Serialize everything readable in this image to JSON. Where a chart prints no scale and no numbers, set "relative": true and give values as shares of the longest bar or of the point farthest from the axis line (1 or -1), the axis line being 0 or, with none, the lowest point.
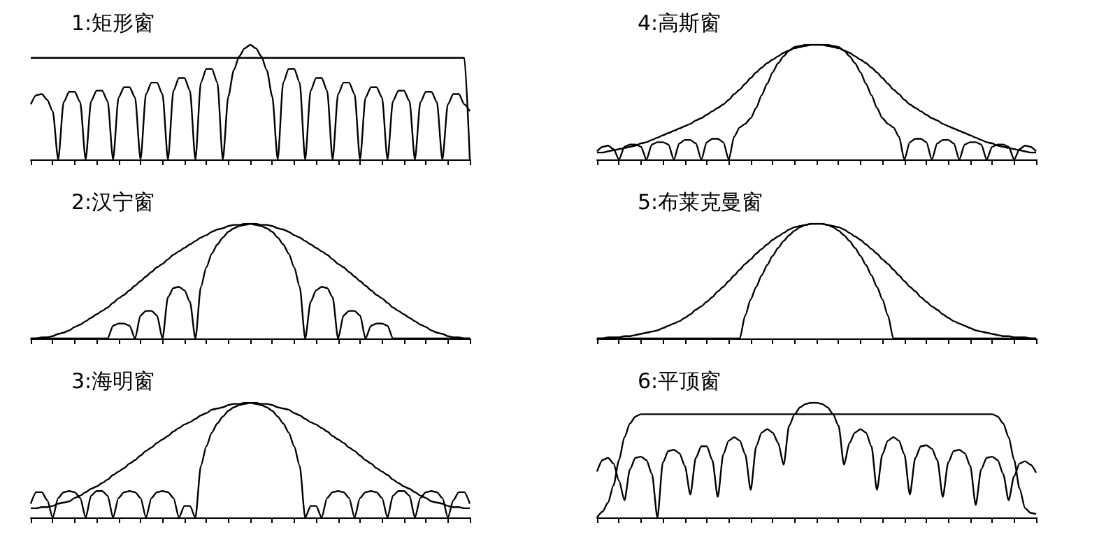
{
  "chart_data": [
    {
      "type": "line",
      "title": "1:矩形窗",
      "relative": true,
      "categories": [
        null,
        null,
        null,
        null,
        null,
        null,
        null,
        null,
        null,
        null,
        null,
        null,
        null,
        null,
        null,
        null,
        null,
        null,
        null,
        null,
        null,
        null,
        null,
        null,
        null,
        null,
        null,
        null,
        null,
        null,
        null,
        null,
        null,
        null,
        null,
        null,
        null,
        null,
        null,
        null,
        null,
        null,
        null,
        null,
        null,
        null,
        null,
        null,
        null,
        null,
        null,
        null,
        null,
        null,
        null,
        null,
        null,
        null,
        null,
        null,
        null,
        null,
        null,
        null,
        null,
        null,
        null,
        null,
        null,
        null,
        null,
        null,
        null,
        null,
        null,
        null,
        null,
        null,
        null,
        null,
        null
      ],
      "series": [
        {
          "color": "#000000",
          "values": [
            0.886,
            0.886,
            0.886,
            0.886,
            0.886,
            0.886,
            0.886,
            0.886,
            0.886,
            0.886,
            0.886,
            0.886,
            0.886,
            0.886,
            0.886,
            0.886,
            0.886,
            0.886,
            0.886,
            0.886,
            0.886,
            0.886,
            0.886,
            0.886,
            0.886,
            0.886,
            0.886,
            0.886,
            0.886,
            0.886,
            0.886,
            0.886,
            0.886,
            0.886,
            0.886,
            0.886,
            0.886,
            0.886,
            0.886,
            0.886,
            0.886,
            0.886,
            0.886,
            0.886,
            0.886,
            0.886,
            0.886,
            0.886,
            0.886,
            0.886,
            0.886,
            0.886,
            0.886,
            0.886,
            0.886,
            0.886,
            0.886,
            0.886,
            0.886,
            0.886,
            0.886,
            0.886,
            0.886,
            0.886,
            0.886,
            0.886,
            0.886,
            0.886,
            0.886,
            0.886,
            0.886,
            0.886,
            0.886,
            0.886,
            0.886,
            0.886,
            0.886,
            0.886,
            0.886,
            0.886,
            0
          ]
        },
        {
          "color": "#000000",
          "values": [
            0.48,
            0.56,
            0.57,
            0.52,
            0.42,
            0,
            0.5,
            0.59,
            0.59,
            0.5,
            0,
            0.51,
            0.6,
            0.6,
            0.51,
            0,
            0.54,
            0.63,
            0.63,
            0.54,
            0,
            0.57,
            0.67,
            0.67,
            0.57,
            0,
            0.6,
            0.71,
            0.71,
            0.6,
            0,
            0.67,
            0.79,
            0.79,
            0.67,
            0,
            0.55,
            0.78,
            0.9,
            0.97,
            1,
            0.97,
            0.9,
            0.78,
            0.55,
            0,
            0.67,
            0.79,
            0.79,
            0.67,
            0,
            0.6,
            0.71,
            0.71,
            0.6,
            0,
            0.57,
            0.67,
            0.67,
            0.57,
            0,
            0.54,
            0.63,
            0.63,
            0.54,
            0,
            0.51,
            0.6,
            0.6,
            0.51,
            0,
            0.5,
            0.59,
            0.59,
            0.5,
            0,
            0.48,
            0.57,
            0.57,
            0.48,
            0.42
          ]
        }
      ]
    },
    {
      "type": "line",
      "title": "2:汉宁窗",
      "relative": true,
      "categories": [
        null,
        null,
        null,
        null,
        null,
        null,
        null,
        null,
        null,
        null,
        null,
        null,
        null,
        null,
        null,
        null,
        null,
        null,
        null,
        null,
        null,
        null,
        null,
        null,
        null,
        null,
        null,
        null,
        null,
        null,
        null,
        null,
        null,
        null,
        null,
        null,
        null,
        null,
        null,
        null,
        null,
        null,
        null,
        null,
        null,
        null,
        null,
        null,
        null,
        null,
        null,
        null,
        null,
        null,
        null,
        null,
        null,
        null,
        null,
        null,
        null,
        null,
        null,
        null,
        null,
        null,
        null,
        null,
        null,
        null,
        null,
        null,
        null,
        null,
        null,
        null,
        null,
        null,
        null,
        null,
        null
      ],
      "series": [
        {
          "color": "#000000",
          "values": [
            0,
            0,
            0.01,
            0.01,
            0.02,
            0.04,
            0.05,
            0.07,
            0.1,
            0.12,
            0.15,
            0.18,
            0.21,
            0.24,
            0.27,
            0.31,
            0.35,
            0.38,
            0.42,
            0.46,
            0.5,
            0.54,
            0.58,
            0.62,
            0.65,
            0.69,
            0.73,
            0.76,
            0.79,
            0.82,
            0.85,
            0.88,
            0.9,
            0.93,
            0.95,
            0.96,
            0.98,
            0.99,
            0.99,
            1,
            1,
            1,
            0.99,
            0.99,
            0.98,
            0.96,
            0.95,
            0.93,
            0.9,
            0.88,
            0.85,
            0.82,
            0.79,
            0.76,
            0.73,
            0.69,
            0.65,
            0.62,
            0.58,
            0.54,
            0.5,
            0.46,
            0.42,
            0.38,
            0.35,
            0.31,
            0.27,
            0.24,
            0.21,
            0.18,
            0.15,
            0.12,
            0.1,
            0.07,
            0.05,
            0.04,
            0.02,
            0.01,
            0.01,
            0,
            0
          ]
        },
        {
          "color": "#000000",
          "values": [
            0,
            0,
            0,
            0,
            0,
            0,
            0,
            0,
            0,
            0,
            0,
            0,
            0,
            0,
            0,
            0.11,
            0.13,
            0.13,
            0.11,
            0,
            0.2,
            0.24,
            0.24,
            0.2,
            0,
            0.36,
            0.44,
            0.45,
            0.42,
            0.32,
            0,
            0.45,
            0.62,
            0.74,
            0.82,
            0.88,
            0.93,
            0.96,
            0.98,
            0.99,
            1,
            0.99,
            0.98,
            0.96,
            0.93,
            0.88,
            0.82,
            0.74,
            0.62,
            0.45,
            0,
            0.32,
            0.42,
            0.45,
            0.44,
            0.36,
            0,
            0.2,
            0.24,
            0.24,
            0.2,
            0,
            0.11,
            0.13,
            0.13,
            0.11,
            0,
            0,
            0,
            0,
            0,
            0,
            0,
            0,
            0,
            0,
            0,
            0,
            0,
            0,
            0
          ]
        }
      ]
    },
    {
      "type": "line",
      "title": "3:海明窗",
      "relative": true,
      "categories": [
        null,
        null,
        null,
        null,
        null,
        null,
        null,
        null,
        null,
        null,
        null,
        null,
        null,
        null,
        null,
        null,
        null,
        null,
        null,
        null,
        null,
        null,
        null,
        null,
        null,
        null,
        null,
        null,
        null,
        null,
        null,
        null,
        null,
        null,
        null,
        null,
        null,
        null,
        null,
        null,
        null,
        null,
        null,
        null,
        null,
        null,
        null,
        null,
        null,
        null,
        null,
        null,
        null,
        null,
        null,
        null,
        null,
        null,
        null,
        null,
        null,
        null,
        null,
        null,
        null,
        null,
        null,
        null,
        null,
        null,
        null,
        null,
        null,
        null,
        null,
        null,
        null,
        null,
        null,
        null,
        null
      ],
      "series": [
        {
          "color": "#000000",
          "values": [
            0.08,
            0.08,
            0.09,
            0.09,
            0.1,
            0.12,
            0.13,
            0.14,
            0.17,
            0.19,
            0.22,
            0.25,
            0.27,
            0.3,
            0.33,
            0.37,
            0.4,
            0.43,
            0.47,
            0.5,
            0.54,
            0.58,
            0.61,
            0.65,
            0.68,
            0.71,
            0.75,
            0.78,
            0.81,
            0.83,
            0.86,
            0.89,
            0.91,
            0.94,
            0.95,
            0.96,
            0.98,
            0.99,
            0.99,
            1,
            1,
            1,
            0.99,
            0.99,
            0.98,
            0.96,
            0.95,
            0.94,
            0.91,
            0.89,
            0.86,
            0.83,
            0.81,
            0.78,
            0.75,
            0.71,
            0.68,
            0.65,
            0.61,
            0.58,
            0.54,
            0.5,
            0.47,
            0.43,
            0.4,
            0.37,
            0.33,
            0.3,
            0.27,
            0.25,
            0.22,
            0.19,
            0.17,
            0.14,
            0.13,
            0.12,
            0.1,
            0.09,
            0.09,
            0.08,
            0.08
          ]
        },
        {
          "color": "#000000",
          "values": [
            0.12,
            0.22,
            0.22,
            0.15,
            0,
            0.17,
            0.22,
            0.23,
            0.22,
            0.17,
            0,
            0.19,
            0.23,
            0.23,
            0.19,
            0,
            0.17,
            0.22,
            0.23,
            0.22,
            0.17,
            0,
            0.17,
            0.22,
            0.23,
            0.22,
            0.17,
            0,
            0.1,
            0.1,
            0,
            0.45,
            0.62,
            0.74,
            0.82,
            0.88,
            0.93,
            0.96,
            0.98,
            0.99,
            1,
            0.99,
            0.98,
            0.96,
            0.93,
            0.88,
            0.82,
            0.74,
            0.62,
            0.45,
            0,
            0.1,
            0.1,
            0,
            0.17,
            0.22,
            0.23,
            0.22,
            0.17,
            0,
            0.17,
            0.22,
            0.23,
            0.22,
            0.17,
            0,
            0.19,
            0.23,
            0.23,
            0.19,
            0,
            0.17,
            0.22,
            0.23,
            0.22,
            0.17,
            0,
            0.15,
            0.22,
            0.22,
            0.12
          ]
        }
      ]
    },
    {
      "type": "line",
      "title": "4:高斯窗",
      "relative": true,
      "categories": [
        null,
        null,
        null,
        null,
        null,
        null,
        null,
        null,
        null,
        null,
        null,
        null,
        null,
        null,
        null,
        null,
        null,
        null,
        null,
        null,
        null,
        null,
        null,
        null,
        null,
        null,
        null,
        null,
        null,
        null,
        null,
        null,
        null,
        null,
        null,
        null,
        null,
        null,
        null,
        null,
        null,
        null,
        null,
        null,
        null,
        null,
        null,
        null,
        null,
        null,
        null,
        null,
        null,
        null,
        null,
        null,
        null,
        null,
        null,
        null,
        null,
        null,
        null,
        null,
        null,
        null,
        null,
        null,
        null,
        null,
        null,
        null,
        null,
        null,
        null,
        null,
        null,
        null,
        null,
        null,
        null
      ],
      "series": [
        {
          "color": "#000000",
          "values": [
            0.06,
            0.06,
            0.07,
            0.08,
            0.09,
            0.1,
            0.11,
            0.12,
            0.14,
            0.15,
            0.17,
            0.19,
            0.21,
            0.23,
            0.25,
            0.27,
            0.29,
            0.31,
            0.34,
            0.36,
            0.39,
            0.42,
            0.45,
            0.48,
            0.52,
            0.57,
            0.61,
            0.66,
            0.71,
            0.76,
            0.8,
            0.84,
            0.87,
            0.9,
            0.93,
            0.95,
            0.97,
            0.98,
            0.99,
            1,
            1,
            1,
            0.99,
            0.98,
            0.97,
            0.95,
            0.93,
            0.9,
            0.87,
            0.84,
            0.8,
            0.76,
            0.71,
            0.66,
            0.61,
            0.57,
            0.52,
            0.48,
            0.45,
            0.42,
            0.39,
            0.36,
            0.34,
            0.31,
            0.29,
            0.27,
            0.25,
            0.23,
            0.21,
            0.19,
            0.17,
            0.15,
            0.14,
            0.12,
            0.11,
            0.1,
            0.09,
            0.08,
            0.07,
            0.06,
            0.06
          ]
        },
        {
          "color": "#000000",
          "values": [
            0.07,
            0.11,
            0.12,
            0.09,
            0,
            0.11,
            0.13,
            0.13,
            0.11,
            0,
            0.13,
            0.15,
            0.15,
            0.13,
            0,
            0.14,
            0.17,
            0.17,
            0.14,
            0,
            0.15,
            0.18,
            0.18,
            0.15,
            0,
            0.2,
            0.28,
            0.31,
            0.36,
            0.45,
            0.56,
            0.66,
            0.76,
            0.84,
            0.9,
            0.95,
            0.98,
            0.99,
            1,
            1,
            1,
            1,
            1,
            0.99,
            0.98,
            0.95,
            0.9,
            0.84,
            0.76,
            0.66,
            0.56,
            0.45,
            0.36,
            0.31,
            0.28,
            0.2,
            0,
            0.15,
            0.18,
            0.18,
            0.15,
            0,
            0.14,
            0.17,
            0.17,
            0.14,
            0,
            0.13,
            0.15,
            0.15,
            0.13,
            0,
            0.11,
            0.13,
            0.13,
            0.11,
            0,
            0.09,
            0.12,
            0.11,
            0.07
          ]
        }
      ]
    },
    {
      "type": "line",
      "title": "5:布莱克曼窗",
      "relative": true,
      "categories": [
        null,
        null,
        null,
        null,
        null,
        null,
        null,
        null,
        null,
        null,
        null,
        null,
        null,
        null,
        null,
        null,
        null,
        null,
        null,
        null,
        null,
        null,
        null,
        null,
        null,
        null,
        null,
        null,
        null,
        null,
        null,
        null,
        null,
        null,
        null,
        null,
        null,
        null,
        null,
        null,
        null,
        null,
        null,
        null,
        null,
        null,
        null,
        null,
        null,
        null,
        null,
        null,
        null,
        null,
        null,
        null,
        null,
        null,
        null,
        null,
        null,
        null,
        null,
        null,
        null,
        null,
        null,
        null,
        null,
        null,
        null,
        null,
        null,
        null,
        null,
        null,
        null,
        null,
        null,
        null,
        null
      ],
      "series": [
        {
          "color": "#000000",
          "values": [
            0,
            0,
            0.01,
            0.01,
            0.01,
            0.02,
            0.02,
            0.03,
            0.04,
            0.05,
            0.06,
            0.07,
            0.09,
            0.11,
            0.13,
            0.15,
            0.18,
            0.21,
            0.25,
            0.28,
            0.32,
            0.36,
            0.41,
            0.45,
            0.5,
            0.55,
            0.6,
            0.65,
            0.69,
            0.74,
            0.78,
            0.82,
            0.86,
            0.89,
            0.92,
            0.95,
            0.97,
            0.98,
            0.99,
            1,
            1,
            1,
            0.99,
            0.98,
            0.97,
            0.95,
            0.92,
            0.89,
            0.86,
            0.82,
            0.78,
            0.74,
            0.69,
            0.65,
            0.6,
            0.55,
            0.5,
            0.45,
            0.41,
            0.36,
            0.32,
            0.28,
            0.25,
            0.21,
            0.18,
            0.15,
            0.13,
            0.11,
            0.09,
            0.07,
            0.06,
            0.05,
            0.04,
            0.03,
            0.02,
            0.02,
            0.01,
            0.01,
            0.01,
            0,
            0
          ]
        },
        {
          "color": "#000000",
          "values": [
            0,
            0,
            0,
            0,
            0,
            0,
            0,
            0,
            0,
            0,
            0,
            0,
            0,
            0,
            0,
            0,
            0,
            0,
            0,
            0,
            0,
            0,
            0,
            0,
            0,
            0,
            0,
            0.2,
            0.34,
            0.45,
            0.55,
            0.64,
            0.72,
            0.79,
            0.85,
            0.9,
            0.94,
            0.97,
            0.99,
            1,
            1,
            1,
            0.99,
            0.97,
            0.94,
            0.9,
            0.85,
            0.79,
            0.72,
            0.64,
            0.55,
            0.45,
            0.34,
            0.2,
            0,
            0,
            0,
            0,
            0,
            0,
            0,
            0,
            0,
            0,
            0,
            0,
            0,
            0,
            0,
            0,
            0,
            0,
            0,
            0,
            0,
            0,
            0,
            0,
            0,
            0,
            0
          ]
        }
      ]
    },
    {
      "type": "line",
      "title": "6:平顶窗",
      "relative": true,
      "categories": [
        null,
        null,
        null,
        null,
        null,
        null,
        null,
        null,
        null,
        null,
        null,
        null,
        null,
        null,
        null,
        null,
        null,
        null,
        null,
        null,
        null,
        null,
        null,
        null,
        null,
        null,
        null,
        null,
        null,
        null,
        null,
        null,
        null,
        null,
        null,
        null,
        null,
        null,
        null,
        null,
        null,
        null,
        null,
        null,
        null,
        null,
        null,
        null,
        null,
        null,
        null,
        null,
        null,
        null,
        null,
        null,
        null,
        null,
        null,
        null,
        null,
        null,
        null,
        null,
        null,
        null,
        null,
        null,
        null,
        null,
        null,
        null,
        null,
        null,
        null,
        null,
        null,
        null,
        null,
        null,
        null
      ],
      "series": [
        {
          "color": "#000000",
          "values": [
            0,
            0.05,
            0.13,
            0.28,
            0.5,
            0.7,
            0.82,
            0.88,
            0.9,
            0.9,
            0.9,
            0.9,
            0.9,
            0.9,
            0.9,
            0.9,
            0.9,
            0.9,
            0.9,
            0.9,
            0.9,
            0.9,
            0.9,
            0.9,
            0.9,
            0.9,
            0.9,
            0.9,
            0.9,
            0.9,
            0.9,
            0.9,
            0.9,
            0.9,
            0.9,
            0.9,
            0.9,
            0.9,
            0.9,
            0.9,
            0.9,
            0.9,
            0.9,
            0.9,
            0.9,
            0.9,
            0.9,
            0.9,
            0.9,
            0.9,
            0.9,
            0.9,
            0.9,
            0.9,
            0.9,
            0.9,
            0.9,
            0.9,
            0.9,
            0.9,
            0.9,
            0.9,
            0.9,
            0.9,
            0.9,
            0.9,
            0.9,
            0.9,
            0.9,
            0.9,
            0.9,
            0.9,
            0.9,
            0.88,
            0.82,
            0.7,
            0.5,
            0.25,
            0.08,
            0.04,
            0.03
          ]
        },
        {
          "color": "#000000",
          "values": [
            0.4,
            0.5,
            0.52,
            0.47,
            0.32,
            0.15,
            0.42,
            0.52,
            0.53,
            0.5,
            0.38,
            0,
            0.48,
            0.58,
            0.59,
            0.56,
            0.45,
            0.2,
            0.52,
            0.62,
            0.62,
            0.5,
            0.18,
            0.55,
            0.67,
            0.7,
            0.67,
            0.55,
            0.24,
            0.62,
            0.74,
            0.77,
            0.74,
            0.65,
            0.46,
            0.8,
            0.9,
            0.96,
            0.99,
            1,
            1,
            0.99,
            0.96,
            0.9,
            0.8,
            0.46,
            0.65,
            0.74,
            0.77,
            0.74,
            0.62,
            0.24,
            0.55,
            0.67,
            0.7,
            0.67,
            0.55,
            0.2,
            0.52,
            0.62,
            0.63,
            0.6,
            0.5,
            0.18,
            0.48,
            0.58,
            0.59,
            0.56,
            0.45,
            0.11,
            0.42,
            0.52,
            0.53,
            0.5,
            0.38,
            0.15,
            0.36,
            0.47,
            0.49,
            0.46,
            0.39
          ]
        }
      ]
    }
  ]
}
